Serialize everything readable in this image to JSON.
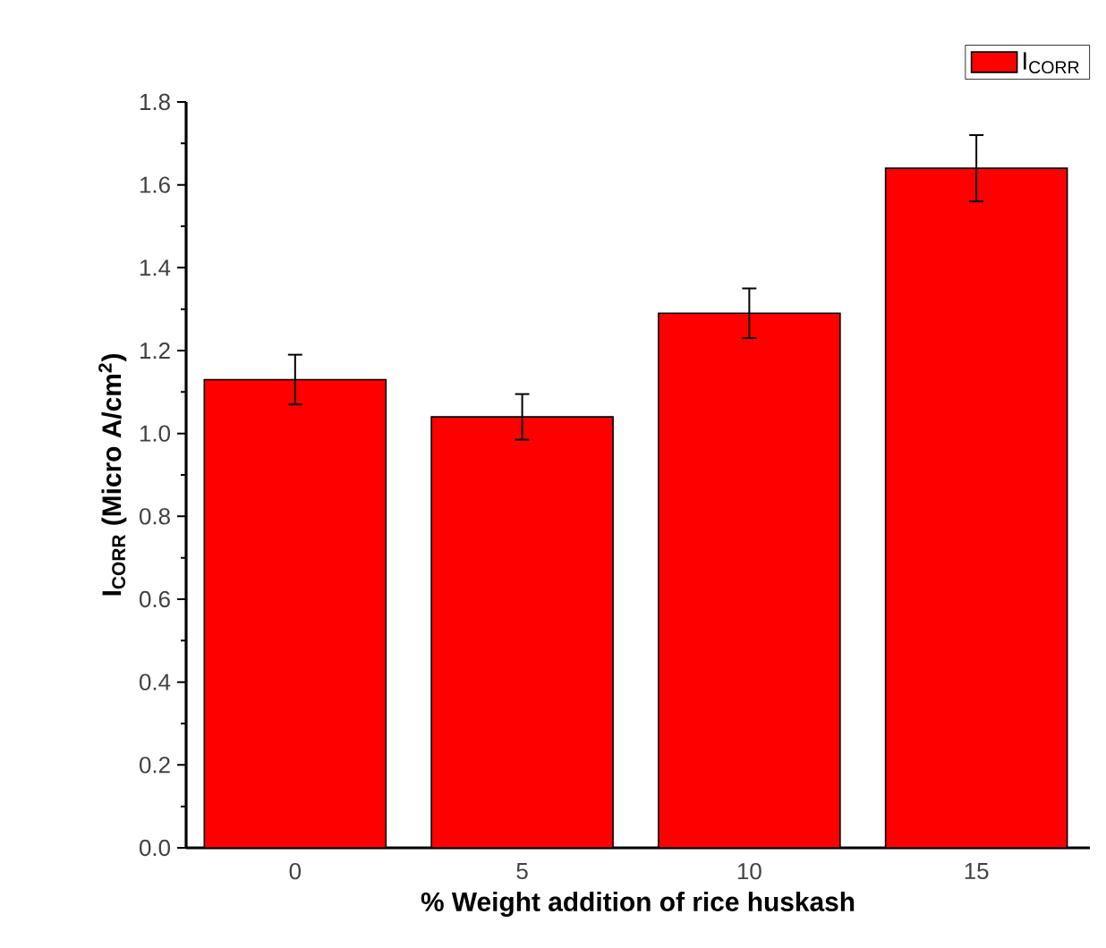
{
  "chart_data": {
    "type": "bar",
    "xlabel": "% Weight addition of rice huskash",
    "ylabel": "I$_{CORR}$ (Micro A/cm$^{2}$)",
    "categories": [
      "0",
      "5",
      "10",
      "15"
    ],
    "series": [
      {
        "name": "I$_{CORR}$",
        "color": "#ff0000",
        "values": [
          1.13,
          1.04,
          1.29,
          1.64
        ],
        "errors": [
          0.06,
          0.055,
          0.06,
          0.08
        ]
      }
    ],
    "ylim": [
      0,
      1.8
    ],
    "yticks": [
      {
        "value": 0,
        "label": "0.0"
      },
      0.2,
      0.4,
      0.6,
      0.8,
      {
        "value": 1,
        "label": "1.0"
      },
      1.2,
      1.4,
      1.6,
      1.8
    ],
    "legend": "top right",
    "grid": false
  }
}
